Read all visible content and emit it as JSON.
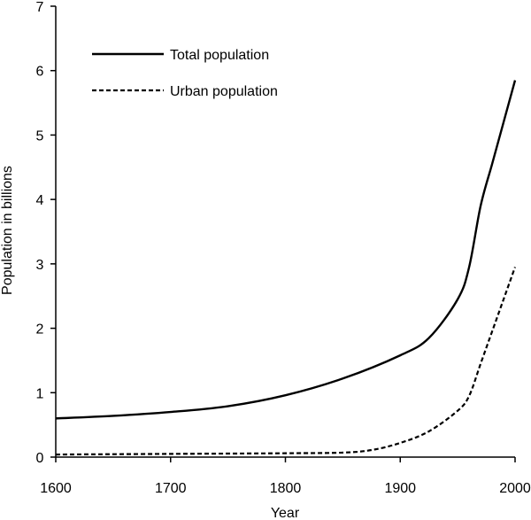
{
  "chart_data": {
    "type": "line",
    "title": "",
    "xlabel": "Year",
    "ylabel": "Population in billions",
    "xlim": [
      1600,
      2000
    ],
    "ylim": [
      0,
      7
    ],
    "x_ticks": [
      1600,
      1700,
      1800,
      1900,
      2000
    ],
    "y_ticks": [
      0,
      1,
      2,
      3,
      4,
      5,
      6,
      7
    ],
    "grid": false,
    "legend_position": "top-left",
    "series": [
      {
        "name": "Total population",
        "style": "solid",
        "x": [
          1600,
          1650,
          1700,
          1750,
          1800,
          1850,
          1900,
          1925,
          1950,
          1960,
          1970,
          1980,
          1990,
          2000
        ],
        "values": [
          0.6,
          0.64,
          0.7,
          0.79,
          0.96,
          1.22,
          1.58,
          1.85,
          2.45,
          2.95,
          3.9,
          4.55,
          5.2,
          5.85
        ]
      },
      {
        "name": "Urban population",
        "style": "dashed",
        "x": [
          1600,
          1700,
          1800,
          1850,
          1875,
          1900,
          1925,
          1950,
          1960,
          1970,
          1980,
          1990,
          2000
        ],
        "values": [
          0.04,
          0.05,
          0.06,
          0.07,
          0.11,
          0.22,
          0.4,
          0.72,
          0.95,
          1.45,
          1.95,
          2.45,
          2.95
        ]
      }
    ]
  }
}
